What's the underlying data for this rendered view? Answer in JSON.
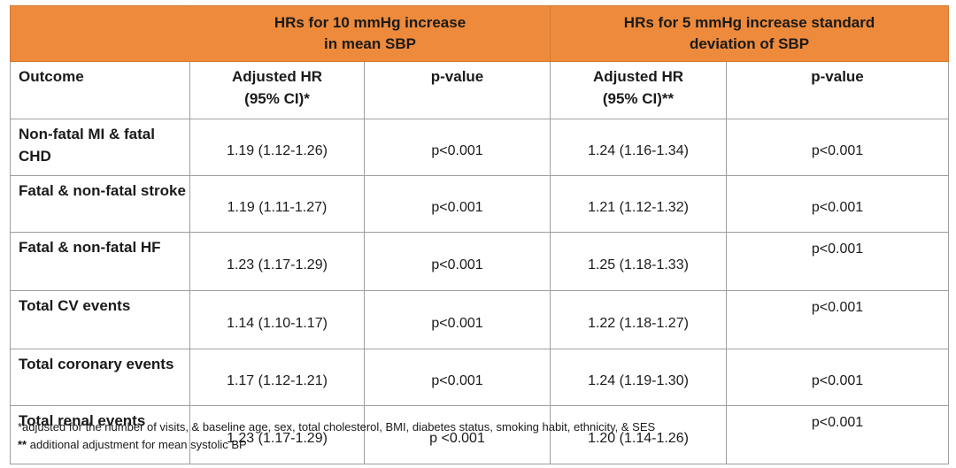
{
  "header": {
    "group1": "HRs for 10 mmHg increase in mean SBP",
    "group1_line1": "HRs for 10 mmHg increase",
    "group1_line2": "in mean SBP",
    "group2_line1": "HRs for 5 mmHg increase standard",
    "group2_line2": "deviation of SBP"
  },
  "columns": {
    "outcome": "Outcome",
    "hr1_line1": "Adjusted HR",
    "hr1_line2": "(95% CI)*",
    "p1": "p-value",
    "hr2_line1": "Adjusted HR",
    "hr2_line2": "(95% CI)**",
    "p2": "p-value"
  },
  "rows": [
    {
      "outcome": "Non-fatal MI & fatal CHD",
      "hr1": "1.19 (1.12-1.26)",
      "p1": "p<0.001",
      "hr2": "1.24 (1.16-1.34)",
      "p2": "p<0.001"
    },
    {
      "outcome": "Fatal & non-fatal stroke",
      "hr1": "1.19 (1.11-1.27)",
      "p1": "p<0.001",
      "hr2": "1.21 (1.12-1.32)",
      "p2": "p<0.001"
    },
    {
      "outcome": "Fatal & non-fatal HF",
      "hr1": "1.23 (1.17-1.29)",
      "p1": "p<0.001",
      "hr2": "1.25 (1.18-1.33)",
      "p2": "p<0.001"
    },
    {
      "outcome": "Total CV events",
      "hr1": "1.14 (1.10-1.17)",
      "p1": "p<0.001",
      "hr2": "1.22 (1.18-1.27)",
      "p2": "p<0.001"
    },
    {
      "outcome": "Total coronary events",
      "hr1": "1.17 (1.12-1.21)",
      "p1": "p<0.001",
      "hr2": "1.24 (1.19-1.30)",
      "p2": "p<0.001"
    },
    {
      "outcome": "Total renal events",
      "hr1": "1.23 (1.17-1.29)",
      "p1": "p <0.001",
      "hr2": "1.20 (1.14-1.26)",
      "p2": "p<0.001"
    }
  ],
  "footnotes": {
    "note1": "*adjusted for the number of visits, & baseline age, sex, total cholesterol, BMI, diabetes status, smoking habit, ethnicity, & SES",
    "note2_mark": "**",
    "note2_text": " additional adjustment for mean systolic BP"
  },
  "colors": {
    "header_band": "#ee8a3b",
    "grid": "#9e9e9e"
  }
}
